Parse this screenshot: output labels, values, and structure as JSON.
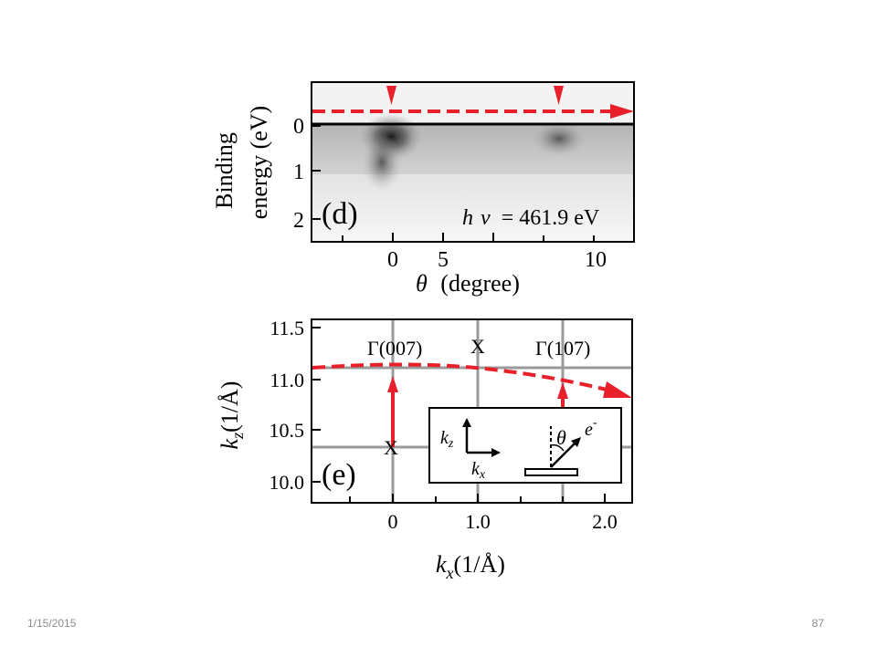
{
  "panel_d": {
    "label": "(d)",
    "ylabel_line1": "Binding",
    "ylabel_line2": "energy (eV)",
    "y_ticks": [
      "0",
      "1",
      "2"
    ],
    "x_ticks": [
      "0",
      "5",
      "10"
    ],
    "xlabel_symbol": "θ",
    "xlabel_text": "(degree)",
    "annotation_h": "h",
    "annotation_nu": "ν",
    "annotation_rest": "= 461.9 eV",
    "colors": {
      "arrow": "#e8202a",
      "line": "#000000",
      "band_bg": "#f2f2f2"
    }
  },
  "panel_e": {
    "label": "(e)",
    "ylabel_k": "k",
    "ylabel_sub": "z",
    "ylabel_unit": "(1/Å)",
    "y_ticks": [
      "11.5",
      "11.0",
      "10.5",
      "10.0"
    ],
    "x_ticks": [
      "0",
      "1.0",
      "2.0"
    ],
    "xlabel_k": "k",
    "xlabel_sub": "x",
    "xlabel_unit": "(1/Å)",
    "gamma_007": "Γ(007)",
    "gamma_107": "Γ(107)",
    "x_top": "X",
    "x_left": "X",
    "inset": {
      "kz_k": "k",
      "kz_sub": "z",
      "kx_k": "k",
      "kx_sub": "x",
      "theta": "θ",
      "electron": "e",
      "electron_sup": "-"
    },
    "colors": {
      "arrow": "#e8202a",
      "grid": "#9a9a9a"
    }
  },
  "footer": {
    "date": "1/15/2015",
    "page": "87"
  }
}
